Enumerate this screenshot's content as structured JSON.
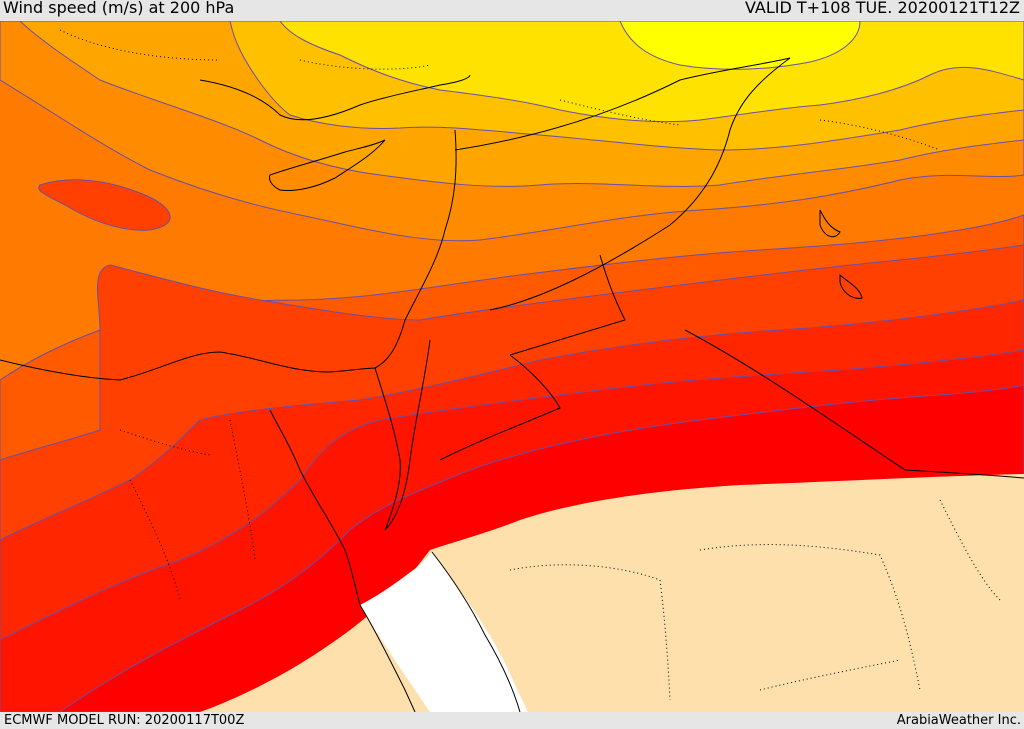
{
  "header": {
    "title": "Wind speed (m/s) at 200 hPa",
    "valid_time": "VALID T+108 TUE. 20200121T12Z"
  },
  "footer": {
    "model_run": "ECMWF MODEL RUN: 20200117T00Z",
    "credit": "ArabiaWeather Inc."
  },
  "map": {
    "variable": "wind speed",
    "units": "m/s",
    "pressure_level_hpa": 200,
    "colors": {
      "band_darkorange": "#ff7a00",
      "band_orange": "#ff8c00",
      "band_lightorange": "#ffa500",
      "band_amber": "#ffc000",
      "band_yellow": "#ffe200",
      "band_brightyellow": "#ffff00",
      "band_redorange": "#ff5a00",
      "band_orangered": "#ff4000",
      "band_red1": "#ff2600",
      "band_red2": "#ff1400",
      "band_red3": "#ff0000",
      "land_masked": "#fde0ac",
      "sea_masked": "#ffffff",
      "contour_line": "#6a4ea8",
      "border_line": "#000000"
    }
  }
}
